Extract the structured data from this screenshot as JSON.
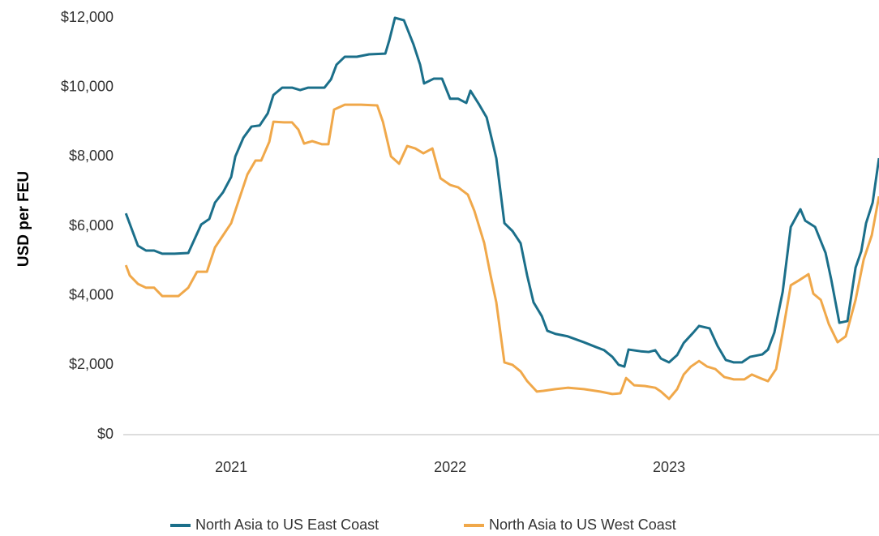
{
  "chart_data": {
    "type": "line",
    "y_axis_label": "USD per FEU",
    "xlim": [
      2020.507,
      2023.959
    ],
    "xticks": [
      2021,
      2022,
      2023
    ],
    "ylim": [
      0,
      12000
    ],
    "yticks": [
      {
        "value": 0,
        "label": "$0"
      },
      {
        "value": 2000,
        "label": "$2,000"
      },
      {
        "value": 4000,
        "label": "$4,000"
      },
      {
        "value": 6000,
        "label": "$6,000"
      },
      {
        "value": 8000,
        "label": "$8,000"
      },
      {
        "value": 10000,
        "label": "$10,000"
      },
      {
        "value": 12000,
        "label": "$12,000"
      }
    ],
    "grid": false,
    "legend": "bottom",
    "series": [
      {
        "name": "North Asia to US East Coast",
        "color": "#1b6f8a",
        "x": [
          2020.519,
          2020.574,
          2020.611,
          2020.648,
          2020.685,
          2020.741,
          2020.804,
          2020.863,
          2020.9,
          2020.926,
          2020.963,
          2021,
          2021.019,
          2021.056,
          2021.093,
          2021.13,
          2021.167,
          2021.193,
          2021.233,
          2021.278,
          2021.315,
          2021.352,
          2021.426,
          2021.456,
          2021.481,
          2021.519,
          2021.574,
          2021.63,
          2021.704,
          2021.722,
          2021.748,
          2021.789,
          2021.833,
          2021.863,
          2021.881,
          2021.926,
          2021.963,
          2022,
          2022.037,
          2022.074,
          2022.093,
          2022.13,
          2022.167,
          2022.211,
          2022.248,
          2022.285,
          2022.322,
          2022.352,
          2022.381,
          2022.419,
          2022.444,
          2022.481,
          2022.537,
          2022.611,
          2022.667,
          2022.704,
          2022.741,
          2022.77,
          2022.796,
          2022.815,
          2022.87,
          2022.907,
          2022.937,
          2022.963,
          2023,
          2023.037,
          2023.067,
          2023.111,
          2023.137,
          2023.185,
          2023.222,
          2023.259,
          2023.296,
          2023.333,
          2023.37,
          2023.426,
          2023.452,
          2023.481,
          2023.519,
          2023.556,
          2023.6,
          2023.622,
          2023.667,
          2023.715,
          2023.741,
          2023.778,
          2023.815,
          2023.852,
          2023.878,
          2023.9,
          2023.93,
          2023.959
        ],
        "values": [
          6370,
          5440,
          5300,
          5300,
          5210,
          5210,
          5230,
          6050,
          6210,
          6680,
          6980,
          7420,
          8010,
          8550,
          8870,
          8900,
          9250,
          9780,
          9990,
          9990,
          9920,
          9990,
          9990,
          10230,
          10650,
          10880,
          10880,
          10950,
          10970,
          11350,
          12000,
          11930,
          11230,
          10650,
          10110,
          10250,
          10250,
          9670,
          9670,
          9550,
          9900,
          9530,
          9130,
          7960,
          6090,
          5860,
          5510,
          4580,
          3810,
          3410,
          2990,
          2900,
          2830,
          2660,
          2520,
          2430,
          2240,
          2010,
          1960,
          2450,
          2400,
          2380,
          2430,
          2190,
          2080,
          2290,
          2640,
          2940,
          3130,
          3060,
          2550,
          2150,
          2080,
          2080,
          2240,
          2310,
          2450,
          2940,
          4110,
          5980,
          6490,
          6160,
          5980,
          5230,
          4460,
          3220,
          3270,
          4810,
          5280,
          6090,
          6680,
          7960
        ]
      },
      {
        "name": "North Asia to US West Coast",
        "color": "#f0a84a",
        "x": [
          2020.519,
          2020.537,
          2020.574,
          2020.611,
          2020.648,
          2020.685,
          2020.759,
          2020.804,
          2020.844,
          2020.889,
          2020.926,
          2020.963,
          2021,
          2021.037,
          2021.074,
          2021.111,
          2021.137,
          2021.174,
          2021.193,
          2021.241,
          2021.278,
          2021.307,
          2021.333,
          2021.37,
          2021.415,
          2021.444,
          2021.47,
          2021.519,
          2021.593,
          2021.667,
          2021.693,
          2021.73,
          2021.767,
          2021.804,
          2021.841,
          2021.878,
          2021.919,
          2021.956,
          2022,
          2022.037,
          2022.081,
          2022.111,
          2022.156,
          2022.185,
          2022.211,
          2022.248,
          2022.285,
          2022.322,
          2022.352,
          2022.396,
          2022.426,
          2022.481,
          2022.537,
          2022.611,
          2022.685,
          2022.741,
          2022.778,
          2022.804,
          2022.841,
          2022.889,
          2022.937,
          2022.963,
          2023,
          2023.037,
          2023.067,
          2023.1,
          2023.137,
          2023.174,
          2023.211,
          2023.252,
          2023.296,
          2023.344,
          2023.378,
          2023.415,
          2023.452,
          2023.489,
          2023.519,
          2023.556,
          2023.593,
          2023.637,
          2023.659,
          2023.693,
          2023.73,
          2023.77,
          2023.807,
          2023.852,
          2023.889,
          2023.926,
          2023.959
        ],
        "values": [
          4880,
          4580,
          4340,
          4230,
          4230,
          3990,
          3990,
          4230,
          4690,
          4690,
          5390,
          5740,
          6090,
          6790,
          7490,
          7890,
          7890,
          8430,
          9010,
          8990,
          8990,
          8780,
          8380,
          8450,
          8360,
          8360,
          9360,
          9500,
          9500,
          9480,
          9010,
          8010,
          7800,
          8310,
          8240,
          8100,
          8240,
          7380,
          7190,
          7120,
          6910,
          6440,
          5510,
          4580,
          3810,
          2080,
          2010,
          1820,
          1540,
          1240,
          1260,
          1310,
          1350,
          1310,
          1240,
          1170,
          1190,
          1630,
          1420,
          1400,
          1350,
          1240,
          1030,
          1310,
          1730,
          1960,
          2120,
          1960,
          1890,
          1660,
          1590,
          1590,
          1730,
          1630,
          1540,
          1890,
          2940,
          4300,
          4440,
          4620,
          4060,
          3880,
          3180,
          2660,
          2830,
          3880,
          5040,
          5740,
          6860
        ]
      }
    ]
  }
}
